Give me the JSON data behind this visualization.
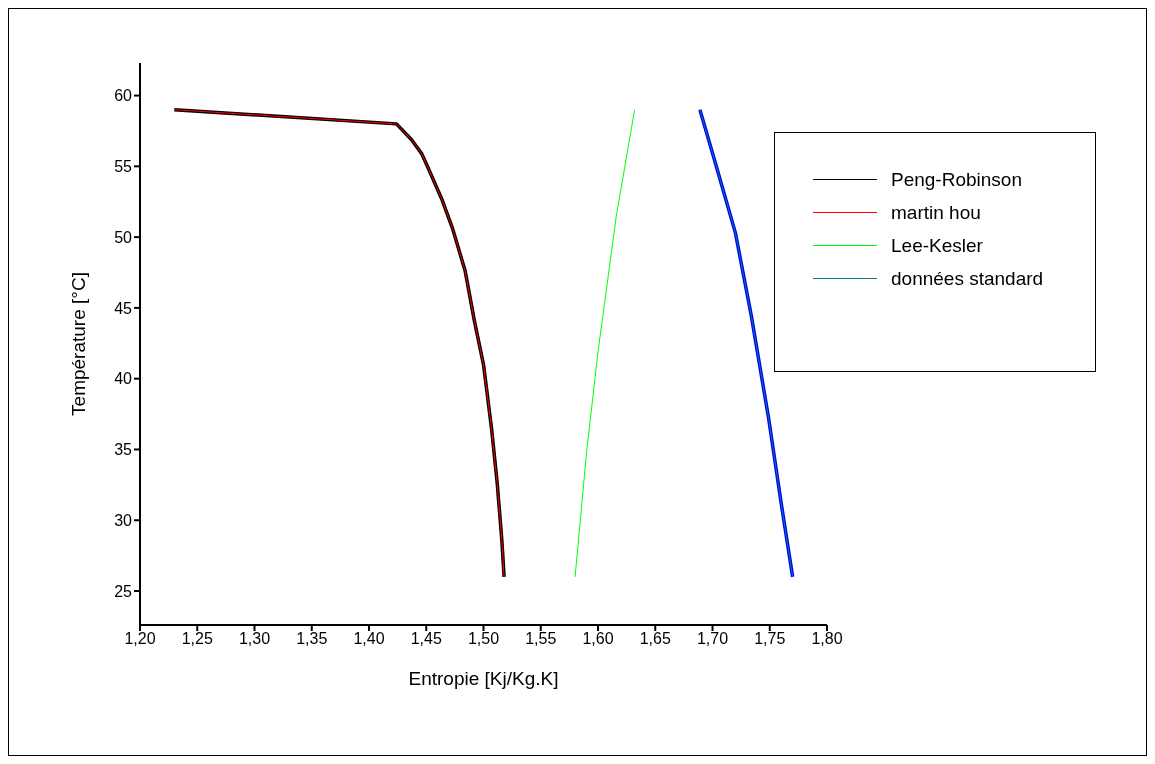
{
  "chart_data": {
    "type": "line",
    "xlabel": "Entropie [Kj/Kg.K]",
    "ylabel": "Température [°C]",
    "xlim": [
      1.2,
      1.8
    ],
    "xticks": [
      {
        "value": 1.2,
        "label": "1,20"
      },
      {
        "value": 1.25,
        "label": "1,25"
      },
      {
        "value": 1.3,
        "label": "1,30"
      },
      {
        "value": 1.35,
        "label": "1,35"
      },
      {
        "value": 1.4,
        "label": "1,40"
      },
      {
        "value": 1.45,
        "label": "1,45"
      },
      {
        "value": 1.5,
        "label": "1,50"
      },
      {
        "value": 1.55,
        "label": "1,55"
      },
      {
        "value": 1.6,
        "label": "1,60"
      },
      {
        "value": 1.65,
        "label": "1,65"
      },
      {
        "value": 1.7,
        "label": "1,70"
      },
      {
        "value": 1.75,
        "label": "1,75"
      },
      {
        "value": 1.8,
        "label": "1,80"
      }
    ],
    "ylim": [
      22.6,
      62.3
    ],
    "yticks": [
      25,
      30,
      35,
      40,
      45,
      50,
      55,
      60
    ],
    "legend": "top right",
    "series": [
      {
        "name": "Peng-Robinson",
        "color": "#000000",
        "x": [
          1.23,
          1.424,
          1.437,
          1.446,
          1.451,
          1.464,
          1.473,
          1.484,
          1.492,
          1.5,
          1.507,
          1.512,
          1.516,
          1.518
        ],
        "values": [
          59,
          58,
          56.9,
          55.9,
          55,
          52.6,
          50.6,
          47.6,
          44.1,
          41,
          36.5,
          32.6,
          28.6,
          26
        ]
      },
      {
        "name": "martin hou",
        "color": "#ff0000",
        "x": [
          1.23,
          1.424,
          1.437,
          1.446,
          1.451,
          1.464,
          1.473,
          1.484,
          1.492,
          1.5,
          1.507,
          1.512,
          1.516,
          1.518
        ],
        "values": [
          59,
          58,
          56.9,
          55.9,
          55,
          52.6,
          50.6,
          47.6,
          44.1,
          41,
          36.5,
          32.6,
          28.6,
          26
        ]
      },
      {
        "name": "Lee-Kesler",
        "color": "#00ff00",
        "x": [
          1.58,
          1.59,
          1.6,
          1.616,
          1.632
        ],
        "values": [
          26,
          34.8,
          41.9,
          51.5,
          59
        ]
      },
      {
        "color": "#0000ff",
        "x": [
          1.689,
          1.703,
          1.72,
          1.734,
          1.749,
          1.76,
          1.77
        ],
        "values": [
          59,
          55.1,
          50.3,
          44.4,
          37.2,
          31.2,
          26
        ]
      },
      {
        "name": "données standard",
        "color": "#008080",
        "x": [
          1.689,
          1.703,
          1.72,
          1.734,
          1.749,
          1.76,
          1.77
        ],
        "values": [
          59,
          55.1,
          50.3,
          44.4,
          37.2,
          31.2,
          26
        ]
      }
    ]
  }
}
